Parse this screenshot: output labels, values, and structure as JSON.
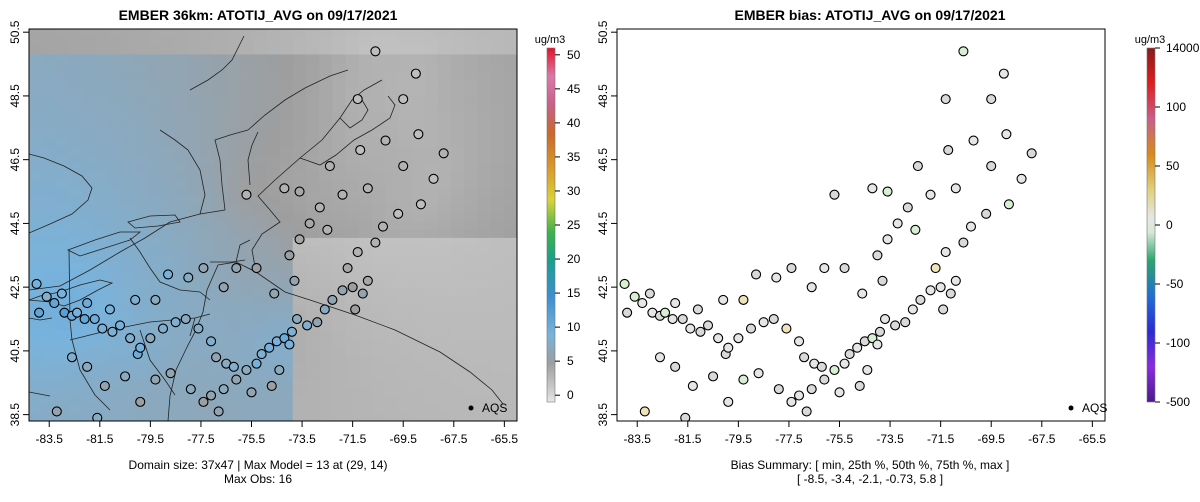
{
  "chart_data": [
    {
      "type": "heatmap",
      "title": "EMBER 36km: ATOTIJ_AVG on 09/17/2021",
      "x_ticks": [
        "-83.5",
        "-81.5",
        "-79.5",
        "-77.5",
        "-75.5",
        "-73.5",
        "-71.5",
        "-69.5",
        "-67.5",
        "-65.5"
      ],
      "y_ticks": [
        "38.5",
        "40.5",
        "42.5",
        "44.5",
        "46.5",
        "48.5",
        "50.5"
      ],
      "xlim": [
        -84.3,
        -65.0
      ],
      "ylim": [
        38.3,
        50.6
      ],
      "colorbar": {
        "unit": "ug/m3",
        "ticks": [
          "0",
          "5",
          "10",
          "15",
          "20",
          "25",
          "30",
          "35",
          "40",
          "45",
          "50"
        ],
        "range": [
          -1,
          51
        ]
      },
      "legend": "AQS",
      "captions": [
        "Domain size: 37x47 | Max Model = 13 at (29, 14)",
        "Max Obs: 16"
      ],
      "points": [
        [
          -83.6,
          42.2,
          8
        ],
        [
          -83.3,
          42.0,
          11
        ],
        [
          -83.0,
          42.3,
          9
        ],
        [
          -82.9,
          41.7,
          12
        ],
        [
          -82.6,
          41.6,
          10
        ],
        [
          -82.4,
          41.7,
          9
        ],
        [
          -82.1,
          41.5,
          11
        ],
        [
          -81.7,
          41.5,
          10
        ],
        [
          -81.4,
          41.2,
          9
        ],
        [
          -81.0,
          41.1,
          8
        ],
        [
          -80.7,
          41.3,
          9
        ],
        [
          -80.3,
          40.9,
          8
        ],
        [
          -80.0,
          40.4,
          10
        ],
        [
          -79.9,
          40.6,
          9
        ],
        [
          -79.5,
          40.9,
          7
        ],
        [
          -79.0,
          41.2,
          8
        ],
        [
          -78.5,
          41.4,
          8
        ],
        [
          -78.1,
          41.5,
          7
        ],
        [
          -77.6,
          41.2,
          8
        ],
        [
          -77.1,
          40.8,
          8
        ],
        [
          -76.9,
          40.3,
          6
        ],
        [
          -76.5,
          40.1,
          7
        ],
        [
          -76.2,
          40.0,
          8
        ],
        [
          -75.7,
          39.9,
          7
        ],
        [
          -75.3,
          40.1,
          9
        ],
        [
          -75.1,
          40.4,
          8
        ],
        [
          -74.8,
          40.6,
          9
        ],
        [
          -74.5,
          40.8,
          9
        ],
        [
          -74.2,
          40.9,
          10
        ],
        [
          -74.0,
          40.7,
          9
        ],
        [
          -73.9,
          41.1,
          8
        ],
        [
          -73.7,
          41.5,
          7
        ],
        [
          -73.3,
          41.3,
          8
        ],
        [
          -72.9,
          41.4,
          6
        ],
        [
          -72.6,
          41.8,
          7
        ],
        [
          -72.3,
          42.1,
          6
        ],
        [
          -71.9,
          42.4,
          6
        ],
        [
          -71.5,
          42.5,
          5
        ],
        [
          -71.1,
          42.3,
          6
        ],
        [
          -70.9,
          42.7,
          4
        ],
        [
          -71.4,
          41.8,
          5
        ],
        [
          -71.7,
          43.1,
          4
        ],
        [
          -71.3,
          43.6,
          3
        ],
        [
          -70.6,
          43.9,
          3
        ],
        [
          -70.3,
          44.4,
          3
        ],
        [
          -69.7,
          44.8,
          2
        ],
        [
          -68.8,
          45.1,
          2
        ],
        [
          -68.3,
          45.9,
          2
        ],
        [
          -67.9,
          46.7,
          3
        ],
        [
          -68.9,
          47.3,
          2
        ],
        [
          -69.5,
          46.3,
          3
        ],
        [
          -72.5,
          44.3,
          3
        ],
        [
          -73.2,
          44.5,
          4
        ],
        [
          -72.8,
          45.0,
          3
        ],
        [
          -73.6,
          44.0,
          4
        ],
        [
          -74.0,
          43.5,
          5
        ],
        [
          -73.8,
          42.7,
          6
        ],
        [
          -74.6,
          42.3,
          6
        ],
        [
          -75.3,
          43.1,
          5
        ],
        [
          -76.1,
          43.1,
          6
        ],
        [
          -76.6,
          42.5,
          6
        ],
        [
          -77.4,
          43.1,
          6
        ],
        [
          -78.0,
          42.8,
          7
        ],
        [
          -78.8,
          42.9,
          9
        ],
        [
          -79.3,
          42.1,
          7
        ],
        [
          -80.1,
          42.1,
          8
        ],
        [
          -81.1,
          41.8,
          9
        ],
        [
          -82.0,
          42.0,
          10
        ],
        [
          -83.9,
          41.7,
          11
        ],
        [
          -84.0,
          42.6,
          9
        ],
        [
          -82.6,
          40.3,
          8
        ],
        [
          -82.0,
          40.0,
          7
        ],
        [
          -81.3,
          39.4,
          6
        ],
        [
          -80.5,
          39.7,
          7
        ],
        [
          -79.3,
          39.6,
          6
        ],
        [
          -78.7,
          39.8,
          6
        ],
        [
          -77.9,
          39.3,
          7
        ],
        [
          -77.1,
          39.1,
          6
        ],
        [
          -76.6,
          39.3,
          7
        ],
        [
          -76.1,
          39.6,
          6
        ],
        [
          -75.5,
          39.2,
          6
        ],
        [
          -74.7,
          39.4,
          5
        ],
        [
          -74.4,
          39.9,
          7
        ],
        [
          -77.4,
          38.9,
          5
        ],
        [
          -76.8,
          38.6,
          6
        ],
        [
          -79.9,
          38.9,
          5
        ],
        [
          -81.6,
          38.4,
          7
        ],
        [
          -83.2,
          38.6,
          6
        ],
        [
          -70.2,
          47.1,
          3
        ],
        [
          -71.2,
          46.8,
          2
        ],
        [
          -74.2,
          45.6,
          3
        ],
        [
          -75.7,
          45.4,
          3
        ],
        [
          -73.6,
          45.5,
          4
        ],
        [
          -71.9,
          45.4,
          3
        ],
        [
          -72.4,
          46.3,
          3
        ],
        [
          -70.9,
          45.6,
          3
        ],
        [
          -69.5,
          48.4,
          2
        ],
        [
          -70.6,
          49.9,
          2
        ],
        [
          -69.0,
          49.2,
          2
        ],
        [
          -71.3,
          48.4,
          2
        ]
      ]
    },
    {
      "type": "scatter",
      "title": "EMBER bias: ATOTIJ_AVG on 09/17/2021",
      "x_ticks": [
        "-83.5",
        "-81.5",
        "-79.5",
        "-77.5",
        "-75.5",
        "-73.5",
        "-71.5",
        "-69.5",
        "-67.5",
        "-65.5"
      ],
      "y_ticks": [
        "38.5",
        "40.5",
        "42.5",
        "44.5",
        "46.5",
        "48.5",
        "50.5"
      ],
      "xlim": [
        -84.3,
        -65.0
      ],
      "ylim": [
        38.3,
        50.6
      ],
      "colorbar": {
        "unit": "ug/m3",
        "labels": [
          "14000",
          "100",
          "50",
          "0",
          "-50",
          "-100",
          "-500"
        ]
      },
      "legend": "AQS",
      "captions": [
        "Bias Summary: [ min, 25th %, 50th %, 75th %, max ]",
        "[ -8.5,   -3.4,   -2.1,   -0.73,   5.8 ]"
      ],
      "bias_summary": {
        "min": -8.5,
        "p25": -3.4,
        "p50": -2.1,
        "p75": -0.73,
        "max": 5.8
      }
    }
  ]
}
